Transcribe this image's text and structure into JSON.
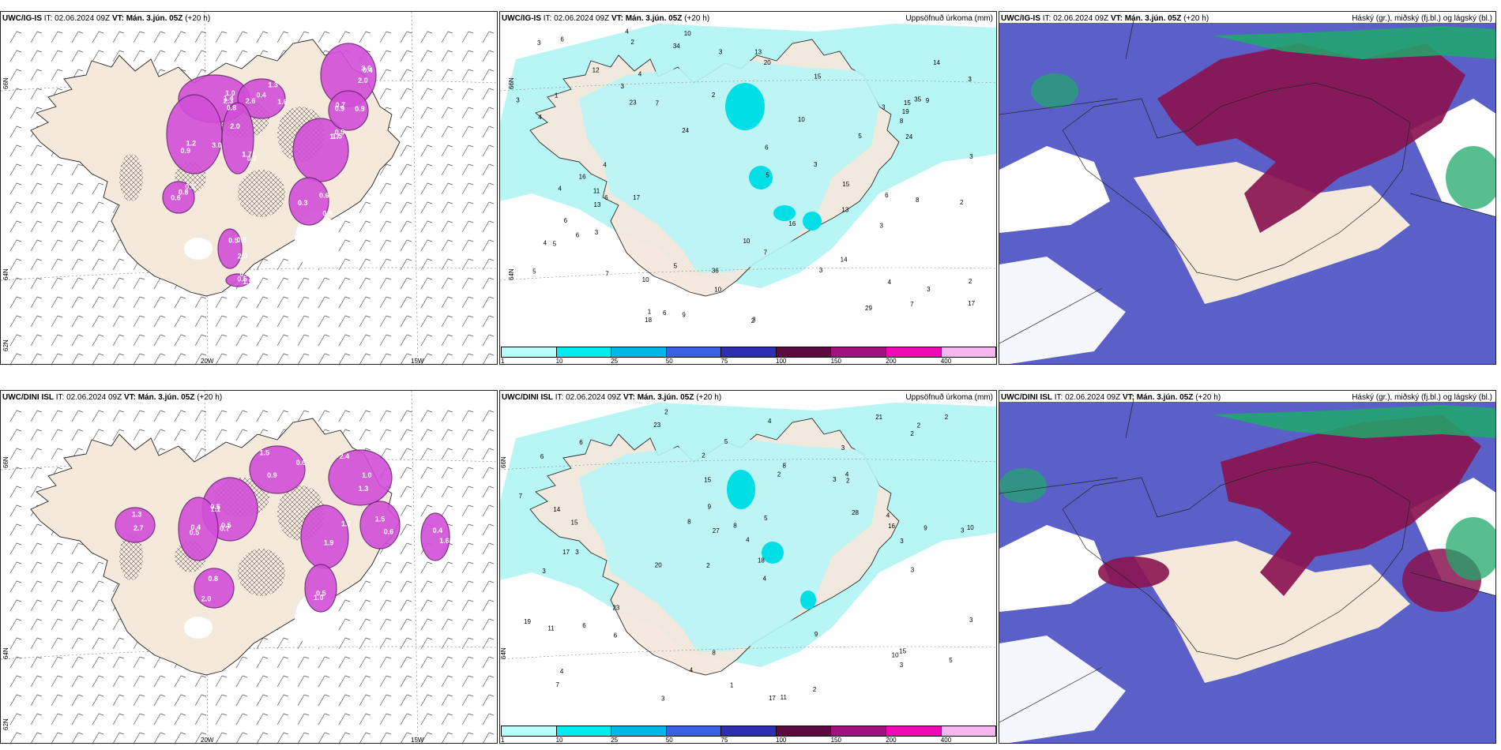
{
  "rows": [
    {
      "model": "UWC/IG-IS",
      "it": " IT: 02.06.2024 09Z ",
      "vt": "VT: Mán. 3.jún. 05Z",
      "lead": " (+20 h)",
      "precip_title": "Uppsöfnuð úrkoma (mm)",
      "cloud_title": "Háský (gr.), miðský (fj.bl.) og lágský (bl.)",
      "lon_labels": [
        "20W",
        "15W"
      ],
      "lat_labels": [
        "66N",
        "64N",
        "62N"
      ],
      "precip_labels": [
        "2",
        "3",
        "3",
        "2",
        "3",
        "1",
        "6",
        "3",
        "3",
        "3",
        "3",
        "4",
        "5",
        "8",
        "10",
        "11",
        "15",
        "14",
        "23",
        "17",
        "16",
        "15",
        "10",
        "9",
        "13",
        "15",
        "34",
        "29",
        "36",
        "35",
        "16",
        "14",
        "10",
        "13",
        "10",
        "9",
        "6",
        "3",
        "4",
        "7",
        "7",
        "6",
        "5",
        "7",
        "24",
        "20",
        "13",
        "12",
        "7",
        "10",
        "24",
        "8",
        "4",
        "5",
        "6",
        "3",
        "4",
        "6",
        "19",
        "2",
        "3",
        "5",
        "4",
        "17",
        "18",
        "6",
        "2",
        "3",
        "4",
        "3",
        "3",
        "4",
        "1",
        "5",
        "2",
        "6"
      ],
      "intensity_labels": [
        "2.3",
        "1.6",
        "3.6",
        "3.0",
        "1.7",
        "1.5",
        "0.6",
        "0.8",
        "2.0",
        "1.5",
        "0.9",
        "1.4",
        "2.6",
        "2.0",
        "1.2",
        "0.7",
        "0.5",
        "0.3",
        "0.8",
        "0.5",
        "0.5",
        "0.9",
        "1.0",
        "1.3",
        "0.4",
        "0.9",
        "2.0",
        "1.7",
        "0.9",
        "0.6",
        "0.5",
        "0.6",
        "0.7",
        "0.8",
        "0.4"
      ]
    },
    {
      "model": "UWC/DINI ISL",
      "it": " IT: 02.06.2024 09Z ",
      "vt": "VT: Mán. 3.jún. 05Z",
      "lead": " (+20 h)",
      "precip_title": "Uppsöfnuð úrkoma (mm)",
      "cloud_title": "Háský (gr.), miðský (fj.bl.) og lágský (bl.)",
      "lon_labels": [
        "20W",
        "15W"
      ],
      "lat_labels": [
        "66N",
        "64N",
        "62N"
      ],
      "precip_labels": [
        "2",
        "3",
        "3",
        "2",
        "4",
        "3",
        "6",
        "3",
        "3",
        "2",
        "4",
        "7",
        "23",
        "20",
        "17",
        "11",
        "8",
        "21",
        "28",
        "23",
        "15",
        "17",
        "10",
        "9",
        "19",
        "14",
        "27",
        "16",
        "15",
        "11",
        "10",
        "8",
        "6",
        "8",
        "9",
        "3",
        "4",
        "4",
        "2",
        "5",
        "4",
        "3",
        "2",
        "6",
        "1",
        "2",
        "3",
        "4",
        "7",
        "18",
        "2",
        "3",
        "5",
        "2",
        "4",
        "6",
        "9",
        "8",
        "2",
        "15",
        "5",
        "3"
      ],
      "intensity_labels": [
        "1.5",
        "2.4",
        "1.1",
        "0.5",
        "1.7",
        "0.6",
        "1.3",
        "0.5",
        "2.0",
        "1.6",
        "0.9",
        "1.0",
        "0.7",
        "0.5",
        "1.9",
        "1.5",
        "2.7",
        "1.0",
        "0.8",
        "0.4",
        "0.6",
        "1.3",
        "0.5",
        "0.4"
      ]
    }
  ],
  "colorbar": {
    "colors": [
      "#b8fbfb",
      "#00ebeb",
      "#00b8e6",
      "#3a5fe0",
      "#2b2fb0",
      "#5b0b3f",
      "#a0127e",
      "#f00ab4",
      "#f6b6ef"
    ],
    "labels": [
      "1",
      "10",
      "25",
      "50",
      "75",
      "100",
      "150",
      "200",
      "400"
    ]
  },
  "colors": {
    "land": "#f5e9dc",
    "precip_light": "#b8f5f5",
    "precip_mid": "#00dfe6",
    "intensity": "#d24fd8",
    "intensity_dark": "#6b2470",
    "cloud_low": "#5b5fc8",
    "cloud_mid": "#8a1450",
    "cloud_high": "#1faa6a"
  }
}
